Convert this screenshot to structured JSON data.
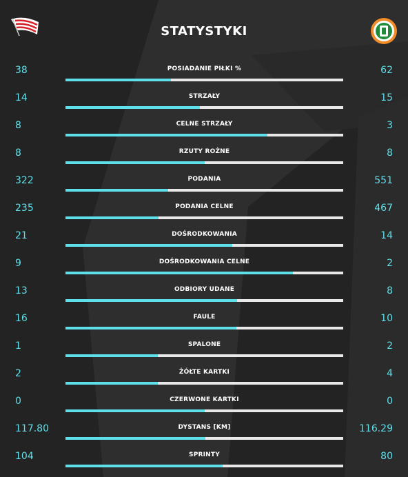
{
  "title": "STATYSTYKI",
  "colors": {
    "accent": "#5ee0ea",
    "bar_bg": "#e8e8e8",
    "background": "#232323"
  },
  "home_logo": "cracovia-flag-logo",
  "away_logo": "zaglebie-lubin-crest-logo",
  "stats": [
    {
      "label": "POSIADANIE PIŁKI %",
      "home": "38",
      "away": "62",
      "home_share": 0.38
    },
    {
      "label": "STRZAŁY",
      "home": "14",
      "away": "15",
      "home_share": 0.483
    },
    {
      "label": "CELNE STRZAŁY",
      "home": "8",
      "away": "3",
      "home_share": 0.727
    },
    {
      "label": "RZUTY ROŻNE",
      "home": "8",
      "away": "8",
      "home_share": 0.5
    },
    {
      "label": "PODANIA",
      "home": "322",
      "away": "551",
      "home_share": 0.369
    },
    {
      "label": "PODANIA CELNE",
      "home": "235",
      "away": "467",
      "home_share": 0.335
    },
    {
      "label": "DOŚRODKOWANIA",
      "home": "21",
      "away": "14",
      "home_share": 0.6
    },
    {
      "label": "DOŚRODKOWANIA CELNE",
      "home": "9",
      "away": "2",
      "home_share": 0.818
    },
    {
      "label": "ODBIORY UDANE",
      "home": "13",
      "away": "8",
      "home_share": 0.619
    },
    {
      "label": "FAULE",
      "home": "16",
      "away": "10",
      "home_share": 0.615
    },
    {
      "label": "SPALONE",
      "home": "1",
      "away": "2",
      "home_share": 0.333
    },
    {
      "label": "ŻÓŁTE KARTKI",
      "home": "2",
      "away": "4",
      "home_share": 0.333
    },
    {
      "label": "CZERWONE KARTKI",
      "home": "0",
      "away": "0",
      "home_share": 0.5
    },
    {
      "label": "DYSTANS [KM]",
      "home": "117.80",
      "away": "116.29",
      "home_share": 0.503
    },
    {
      "label": "SPRINTY",
      "home": "104",
      "away": "80",
      "home_share": 0.565
    }
  ]
}
